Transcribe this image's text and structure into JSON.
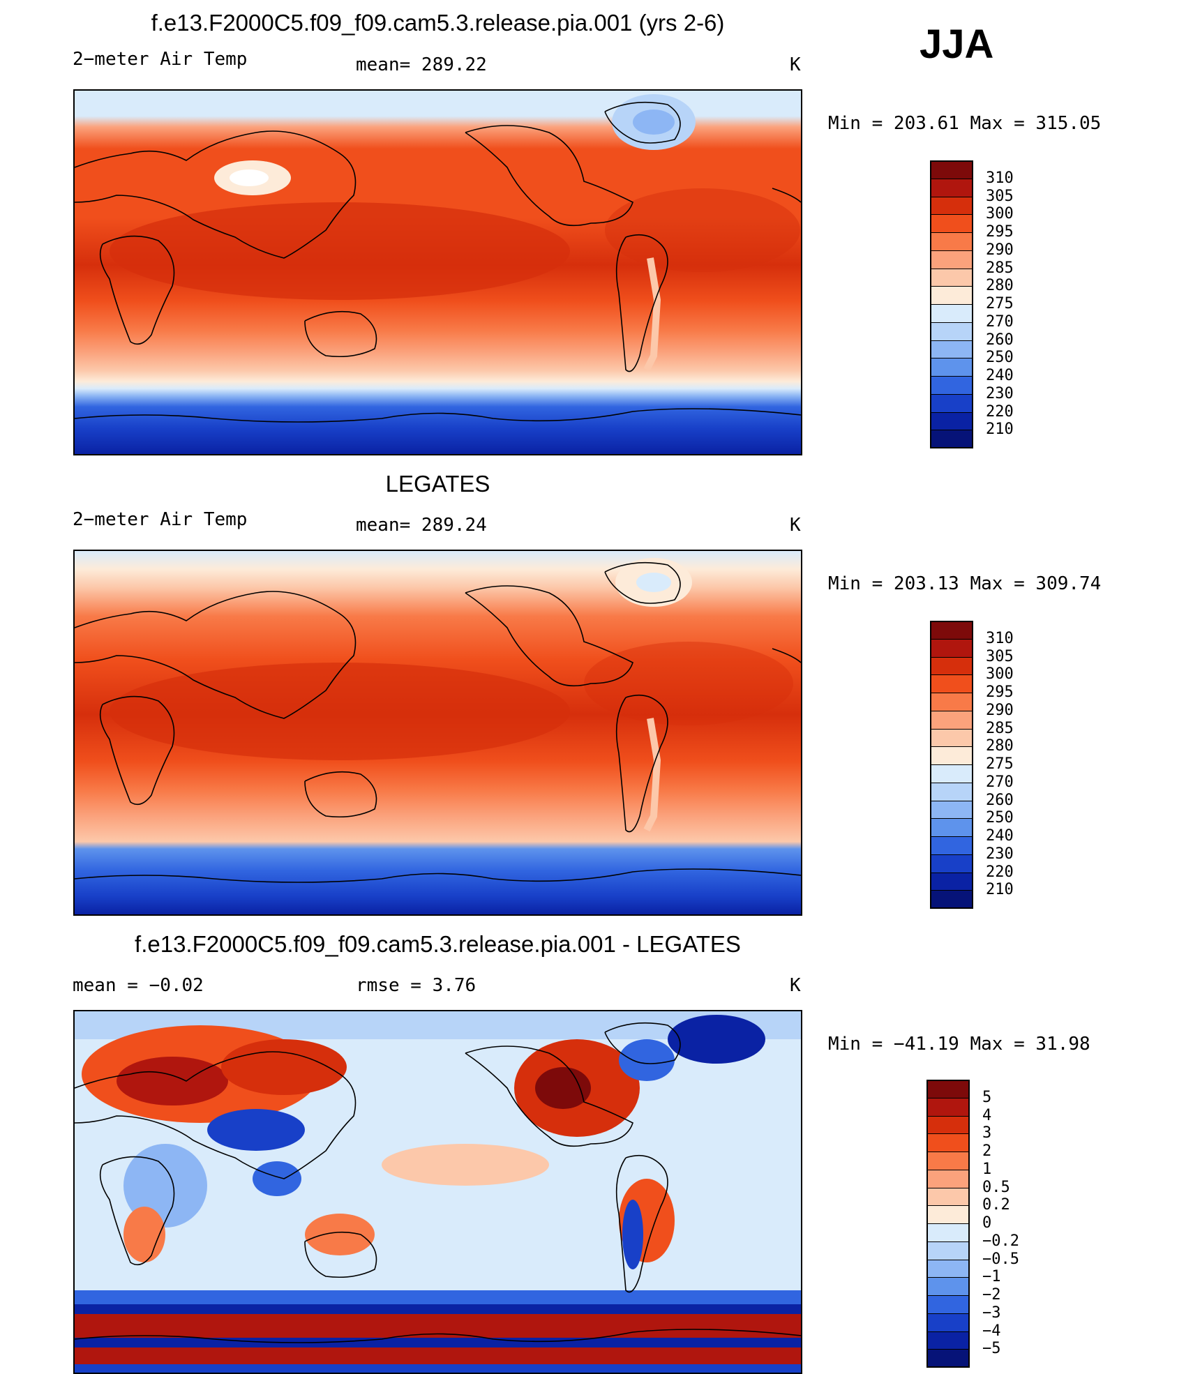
{
  "season": "JJA",
  "panels": [
    {
      "title": "f.e13.F2000C5.f09_f09.cam5.3.release.pia.001 (yrs 2-6)",
      "left_label": "2−meter Air Temp",
      "center_label": "mean=  289.22",
      "units": "K",
      "minmax": "Min  =  203.61  Max  =  315.05",
      "map_type": "absolute"
    },
    {
      "title": "LEGATES",
      "left_label": "2−meter Air Temp",
      "center_label": "mean=  289.24",
      "units": "K",
      "minmax": "Min  =  203.13  Max  =  309.74",
      "map_type": "absolute"
    },
    {
      "title": "f.e13.F2000C5.f09_f09.cam5.3.release.pia.001 - LEGATES",
      "left_label": "mean  =    −0.02",
      "center_label": "rmse  =     3.76",
      "units": "K",
      "minmax": "Min  =  −41.19  Max  =    31.98",
      "map_type": "difference"
    }
  ],
  "colorbar_abs": {
    "levels": [
      "310",
      "305",
      "300",
      "295",
      "290",
      "285",
      "280",
      "275",
      "270",
      "260",
      "250",
      "240",
      "230",
      "220",
      "210"
    ],
    "colors": [
      "#7d0a0a",
      "#b0160e",
      "#d62f0c",
      "#f04f1c",
      "#f87a48",
      "#fba27c",
      "#fcc8aa",
      "#fdebd9",
      "#d9ebfb",
      "#b7d4f8",
      "#8db6f4",
      "#5e93ec",
      "#3165e0",
      "#1840c8",
      "#0a22a4",
      "#061378"
    ]
  },
  "colorbar_diff": {
    "levels": [
      "5",
      "4",
      "3",
      "2",
      "1",
      "0.5",
      "0.2",
      "0",
      "−0.2",
      "−0.5",
      "−1",
      "−2",
      "−3",
      "−4",
      "−5"
    ],
    "colors": [
      "#7d0a0a",
      "#b0160e",
      "#d62f0c",
      "#f04f1c",
      "#f87a48",
      "#fba27c",
      "#fcc8aa",
      "#fdebd9",
      "#d9ebfb",
      "#b7d4f8",
      "#8db6f4",
      "#5e93ec",
      "#3165e0",
      "#1840c8",
      "#0a22a4",
      "#061378"
    ]
  }
}
